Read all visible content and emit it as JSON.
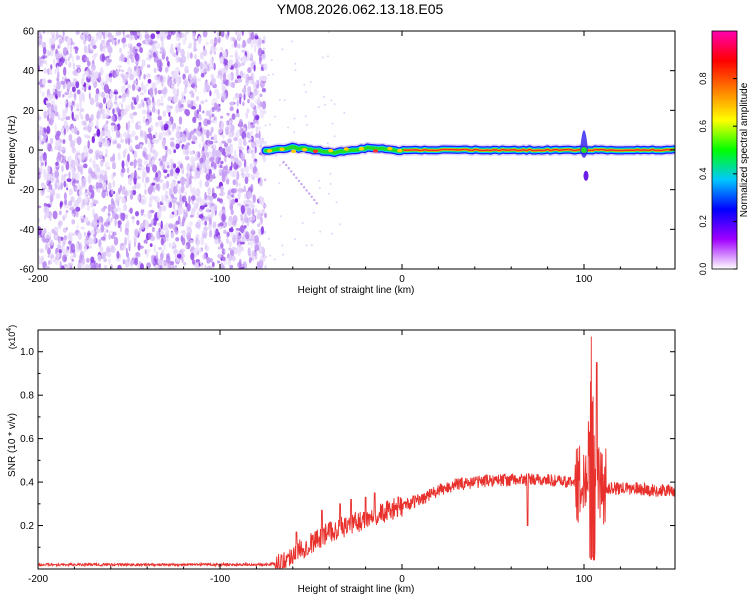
{
  "title": "YM08.2026.062.13.18.E05",
  "colors": {
    "snr_line": "#e8302c",
    "frame": "#000000",
    "spectro_noise": "#7a1ee0",
    "ridge_core": "#e8302c"
  },
  "chart_data": [
    {
      "type": "heatmap",
      "name": "spectrogram",
      "xlabel": "Height of straight line (km)",
      "ylabel": "Frequency (Hz)",
      "xlim": [
        -200,
        150
      ],
      "ylim": [
        -60,
        60
      ],
      "xticks": [
        -200,
        -100,
        0,
        100
      ],
      "xtick_labels": [
        "-200",
        "-100",
        "0",
        "100"
      ],
      "yticks": [
        60,
        40,
        20,
        0,
        -20,
        -40,
        -60
      ],
      "ytick_labels": [
        "60",
        "40",
        "20",
        "0",
        "-20",
        "-40",
        "-60"
      ],
      "noise_region_x": [
        -200,
        -75
      ],
      "signal_start_x": -75,
      "signal_frequency": 0,
      "spike_x": 100,
      "colorbar": {
        "label": "Normalized spectral amplitude",
        "range": [
          0,
          1
        ],
        "ticks": [
          0.0,
          0.2,
          0.4,
          0.6,
          0.8
        ],
        "tick_labels": [
          "0.0",
          "0.2",
          "0.4",
          "0.6",
          "0.8"
        ],
        "colors": [
          "#ffffff",
          "#a000ff",
          "#0000ff",
          "#00c8ff",
          "#00ff00",
          "#ffff00",
          "#ff8000",
          "#ff0000",
          "#ff00b0"
        ]
      }
    },
    {
      "type": "line",
      "name": "snr",
      "xlabel": "Height of straight line (km)",
      "ylabel": "SNR (10 * v/v)",
      "exponent_label": "(x10",
      "exponent_power": "4",
      "exponent_close": ")",
      "xlim": [
        -200,
        150
      ],
      "ylim": [
        0,
        1.1
      ],
      "xticks": [
        -200,
        -100,
        0,
        100
      ],
      "xtick_labels": [
        "-200",
        "-100",
        "0",
        "100"
      ],
      "yticks": [
        0.2,
        0.4,
        0.6,
        0.8,
        1.0
      ],
      "ytick_labels": [
        "0.2",
        "0.4",
        "0.6",
        "0.8",
        "1.0"
      ],
      "envelope": {
        "x": [
          -200,
          -150,
          -100,
          -75,
          -65,
          -60,
          -50,
          -40,
          -30,
          -20,
          -15,
          -10,
          0,
          10,
          20,
          30,
          40,
          50,
          60,
          70,
          80,
          90,
          95,
          100,
          102,
          104,
          106,
          108,
          110,
          115,
          120,
          130,
          140,
          150
        ],
        "y": [
          0.02,
          0.02,
          0.02,
          0.02,
          0.03,
          0.07,
          0.12,
          0.17,
          0.2,
          0.23,
          0.25,
          0.26,
          0.29,
          0.32,
          0.36,
          0.39,
          0.4,
          0.41,
          0.41,
          0.41,
          0.41,
          0.4,
          0.4,
          0.38,
          0.5,
          0.8,
          0.6,
          0.4,
          0.38,
          0.37,
          0.37,
          0.37,
          0.36,
          0.36
        ]
      },
      "peaks": [
        {
          "x": -58,
          "y": 0.17
        },
        {
          "x": -44,
          "y": 0.27
        },
        {
          "x": -34,
          "y": 0.3
        },
        {
          "x": -28,
          "y": 0.32
        },
        {
          "x": -20,
          "y": 0.33
        },
        {
          "x": -15,
          "y": 0.35
        },
        {
          "x": 69,
          "y": 0.2
        },
        {
          "x": 104,
          "y": 1.07
        },
        {
          "x": 107,
          "y": 0.95
        }
      ]
    }
  ]
}
